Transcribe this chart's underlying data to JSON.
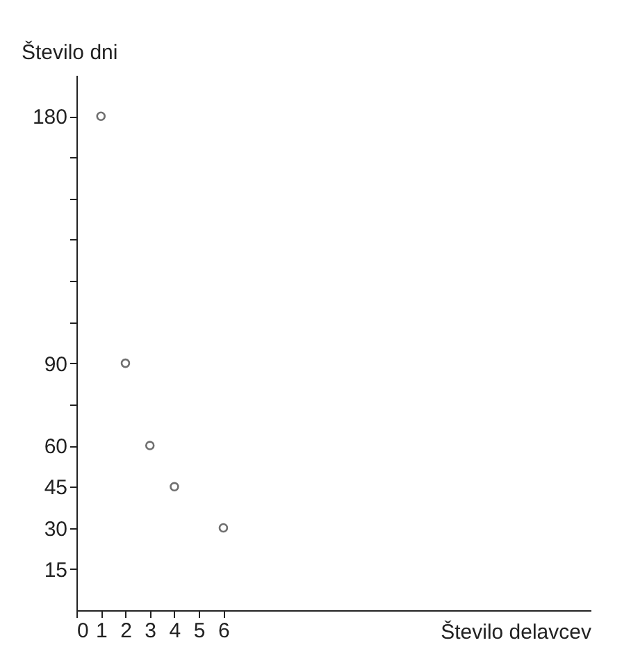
{
  "chart_data": {
    "type": "scatter",
    "xlabel": "Število delavcev",
    "ylabel": "Število dni",
    "x": [
      1,
      2,
      3,
      4,
      6
    ],
    "series": [
      {
        "color": "#333333",
        "values": [
          180,
          90,
          60,
          45,
          30
        ]
      }
    ],
    "xlim": [
      0,
      21
    ],
    "ylim": [
      0,
      195
    ],
    "xticks": [
      0,
      1,
      2,
      3,
      4,
      5,
      6
    ],
    "yticks": [
      15,
      30,
      45,
      60,
      {
        "value": 75,
        "label": null
      },
      90,
      {
        "value": 105,
        "label": null
      },
      {
        "value": 120,
        "label": null
      },
      {
        "value": 135,
        "label": null
      },
      {
        "value": 150,
        "label": null
      },
      {
        "value": 165,
        "label": null
      },
      180
    ],
    "marker": "circle",
    "grid": false
  }
}
